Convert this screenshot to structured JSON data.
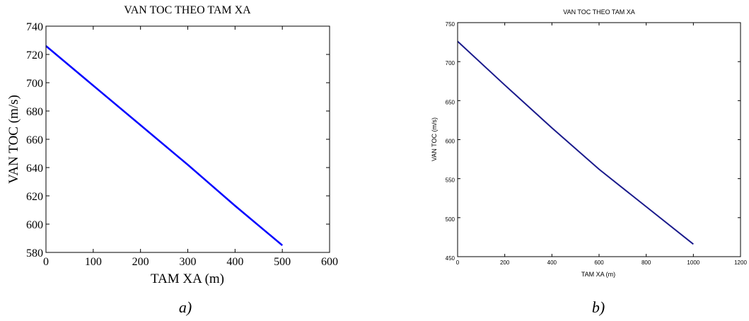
{
  "chart_data": [
    {
      "type": "line",
      "title": "VAN TOC THEO TAM XA",
      "xlabel": "TAM XA (m)",
      "ylabel": "VAN TOC (m/s)",
      "caption": "a)",
      "xlim": [
        0,
        600
      ],
      "ylim": [
        580,
        740
      ],
      "xticks": [
        0,
        100,
        200,
        300,
        400,
        500,
        600
      ],
      "yticks": [
        580,
        600,
        620,
        640,
        660,
        680,
        700,
        720,
        740
      ],
      "grid": false,
      "series": [
        {
          "color": "#0000ff",
          "x": [
            0,
            100,
            200,
            300,
            400,
            500
          ],
          "y": [
            726,
            698,
            670,
            642,
            613,
            585
          ]
        }
      ]
    },
    {
      "type": "line",
      "title": "VAN TOC THEO TAM XA",
      "xlabel": "TAM XA (m)",
      "ylabel": "VAN TOC (m/s)",
      "caption": "b)",
      "xlim": [
        0,
        1200
      ],
      "ylim": [
        450,
        750
      ],
      "xticks": [
        0,
        200,
        400,
        600,
        800,
        1000,
        1200
      ],
      "yticks": [
        450,
        500,
        550,
        600,
        650,
        700,
        750
      ],
      "grid": false,
      "series": [
        {
          "color": "#1a1a8c",
          "x": [
            0,
            200,
            400,
            600,
            800,
            1000
          ],
          "y": [
            726,
            670,
            615,
            562,
            514,
            466
          ]
        }
      ]
    }
  ]
}
